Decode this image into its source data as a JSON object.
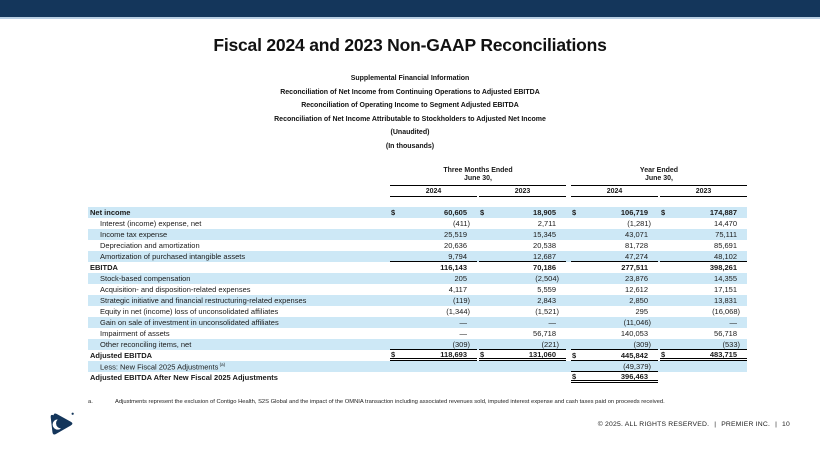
{
  "slide": {
    "title": "Fiscal 2024 and 2023 Non-GAAP Reconciliations",
    "subtitles": [
      "Supplemental Financial Information",
      "Reconciliation of Net Income from Continuing Operations to Adjusted EBITDA",
      "Reconciliation of Operating Income to Segment Adjusted EBITDA",
      "Reconciliation of Net Income Attributable to Stockholders to Adjusted Net Income",
      "(Unaudited)",
      "(In thousands)"
    ]
  },
  "table": {
    "groups": [
      {
        "line1": "Three Months Ended",
        "line2": "June 30,"
      },
      {
        "line1": "Year Ended",
        "line2": "June 30,"
      }
    ],
    "year_headers": [
      "2024",
      "2023",
      "2024",
      "2023"
    ],
    "rows": [
      {
        "label": "Net income",
        "bold": true,
        "shaded": true,
        "dollar": [
          true,
          true,
          true,
          true
        ],
        "values": [
          "60,605",
          "18,905",
          "106,719",
          "174,887"
        ]
      },
      {
        "label": "Interest (income) expense, net",
        "indent": true,
        "values": [
          "(411)",
          "2,711",
          "(1,281)",
          "14,470"
        ]
      },
      {
        "label": "Income tax expense",
        "indent": true,
        "shaded": true,
        "values": [
          "25,519",
          "15,345",
          "43,071",
          "75,111"
        ]
      },
      {
        "label": "Depreciation and amortization",
        "indent": true,
        "values": [
          "20,636",
          "20,538",
          "81,728",
          "85,691"
        ]
      },
      {
        "label": "Amortization of purchased intangible assets",
        "indent": true,
        "shaded": true,
        "values": [
          "9,794",
          "12,687",
          "47,274",
          "48,102"
        ],
        "bottom": [
          "single",
          "single",
          "single",
          "single"
        ]
      },
      {
        "label": "EBITDA",
        "bold": true,
        "values": [
          "116,143",
          "70,186",
          "277,511",
          "398,261"
        ]
      },
      {
        "label": "Stock-based compensation",
        "indent": true,
        "shaded": true,
        "values": [
          "205",
          "(2,504)",
          "23,876",
          "14,355"
        ]
      },
      {
        "label": "Acquisition- and disposition-related expenses",
        "indent": true,
        "values": [
          "4,117",
          "5,559",
          "12,612",
          "17,151"
        ]
      },
      {
        "label": "Strategic initiative and financial restructuring-related expenses",
        "indent": true,
        "shaded": true,
        "values": [
          "(119)",
          "2,843",
          "2,850",
          "13,831"
        ]
      },
      {
        "label": "Equity in net (income) loss of unconsolidated affiliates",
        "indent": true,
        "values": [
          "(1,344)",
          "(1,521)",
          "295",
          "(16,068)"
        ]
      },
      {
        "label": "Gain on sale of investment in unconsolidated affiliates",
        "indent": true,
        "shaded": true,
        "values": [
          "—",
          "—",
          "(11,046)",
          "—"
        ]
      },
      {
        "label": "Impairment of assets",
        "indent": true,
        "values": [
          "—",
          "56,718",
          "140,053",
          "56,718"
        ]
      },
      {
        "label": "Other reconciling items, net",
        "indent": true,
        "shaded": true,
        "values": [
          "(309)",
          "(221)",
          "(309)",
          "(533)"
        ],
        "bottom": [
          "single",
          "single",
          "single",
          "single"
        ]
      },
      {
        "label": "Adjusted EBITDA",
        "bold": true,
        "dollar": [
          true,
          true,
          true,
          true
        ],
        "values": [
          "118,693",
          "131,060",
          "445,842",
          "483,715"
        ],
        "bottom": [
          "double",
          "double",
          "single",
          "double"
        ]
      },
      {
        "label": "Less: New Fiscal 2025 Adjustments",
        "sup": "(a)",
        "indent": true,
        "shaded": true,
        "values": [
          "",
          "",
          "(49,379)",
          ""
        ],
        "bottom": [
          null,
          null,
          "single",
          null
        ]
      },
      {
        "label": "Adjusted EBITDA After New Fiscal 2025 Adjustments",
        "bold": true,
        "dollar": [
          false,
          false,
          true,
          false
        ],
        "values": [
          "",
          "",
          "396,463",
          ""
        ],
        "bottom": [
          null,
          null,
          "double",
          null
        ]
      }
    ]
  },
  "footnote": {
    "marker": "a.",
    "text": "Adjustments represent the exclusion of Contigo Health, S2S Global and the impact of the OMNIA transaction including associated revenues sold, imputed interest expense and cash taxes paid on proceeds received."
  },
  "footer": {
    "copyright": "© 2025. ALL RIGHTS RESERVED.",
    "separator": "|",
    "company": "PREMIER INC.",
    "page": "10"
  },
  "colors": {
    "top_bar": "#14365b",
    "accent_line": "#b9cfe3",
    "row_shade": "#cde8f6",
    "logo": "#14365b"
  }
}
